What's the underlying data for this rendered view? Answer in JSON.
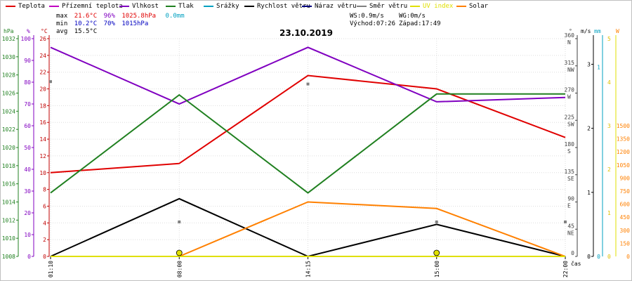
{
  "legend": [
    {
      "label": "Teplota",
      "color": "#e00000"
    },
    {
      "label": "Přízemní teplota",
      "color": "#c000c0"
    },
    {
      "label": "Vlhkost",
      "color": "#8000c0"
    },
    {
      "label": "Tlak",
      "color": "#208020"
    },
    {
      "label": "Srážky",
      "color": "#00a0c0"
    },
    {
      "label": "Rychlost větru",
      "color": "#000000"
    },
    {
      "label": "Náraz větru",
      "color": "#000080"
    },
    {
      "label": "Směr větru",
      "color": "#808080"
    },
    {
      "label": "UV index",
      "color": "#e0e000"
    },
    {
      "label": "Solar",
      "color": "#ff8000"
    }
  ],
  "stats": {
    "max_label": "max",
    "max_temp": "21.6°C",
    "max_hum": "96%",
    "max_press": "1025.8hPa",
    "rain": "0.0mm",
    "min_label": "min",
    "min_temp": "10.2°C",
    "min_hum": "70%",
    "min_press": "1015hPa",
    "avg_label": "avg",
    "avg_temp": "15.5°C"
  },
  "wind_info": {
    "ws": "WS:0.9m/s",
    "wg": "WG:0m/s",
    "sunrise": "Východ:07:26",
    "sunset": "Západ:17:49"
  },
  "colors": {
    "temperature": "#e00000",
    "humidity": "#8000c0",
    "pressure": "#208020",
    "wind_speed": "#000000",
    "wind_dir": "#808080",
    "uv": "#e0e000",
    "solar": "#ff8000",
    "rain": "#00a0c0"
  },
  "chart_data": {
    "type": "line",
    "title": "23.10.2019",
    "x": [
      "01:10",
      "08:00",
      "14:15",
      "15:00",
      "22:00"
    ],
    "xlabel": "čas",
    "series": [
      {
        "name": "Teplota",
        "axis": "temp_c",
        "values": [
          10.0,
          11.1,
          21.6,
          20.0,
          14.2
        ]
      },
      {
        "name": "Vlhkost",
        "axis": "humidity_pct",
        "values": [
          96,
          70,
          96,
          71,
          73
        ]
      },
      {
        "name": "Tlak",
        "axis": "pressure_hpa",
        "values": [
          1015.0,
          1025.8,
          1015.0,
          1025.9,
          1025.9
        ]
      },
      {
        "name": "Rychlost větru",
        "axis": "wind_ms",
        "values": [
          0.0,
          0.9,
          0.0,
          0.5,
          0.0
        ]
      },
      {
        "name": "Solar",
        "axis": "solar",
        "values": [
          0,
          0,
          625,
          550,
          0
        ]
      },
      {
        "name": "Směr větru",
        "axis": "wind_dir_deg",
        "values": [
          289,
          57,
          285,
          57,
          57
        ]
      },
      {
        "name": "UV index",
        "axis": "uv",
        "values": [
          0,
          0.1,
          0,
          0.1,
          0
        ]
      }
    ],
    "axes": {
      "pressure_hpa": {
        "label": "hPa",
        "ticks": [
          "1008",
          "1010",
          "1012",
          "1014",
          "1016",
          "1018",
          "1020",
          "1022",
          "1024",
          "1026",
          "1028",
          "1030",
          "1032"
        ],
        "range": [
          1008,
          1032
        ]
      },
      "humidity_pct": {
        "label": "%",
        "ticks": [
          "0",
          "10",
          "20",
          "30",
          "40",
          "50",
          "60",
          "70",
          "80",
          "90",
          "100"
        ],
        "range": [
          0,
          100
        ]
      },
      "temp_c": {
        "label": "°C",
        "ticks": [
          "0",
          "2",
          "4",
          "6",
          "8",
          "10",
          "12",
          "14",
          "16",
          "18",
          "20",
          "22",
          "24",
          "26"
        ],
        "range": [
          0,
          26
        ]
      },
      "wind_dir_deg": {
        "label": "°",
        "ticks": [
          "0",
          "45",
          "90",
          "135",
          "180",
          "225",
          "270",
          "315",
          "360"
        ],
        "compass": [
          "",
          "NE",
          "E",
          "SE",
          "S",
          "SW",
          "W",
          "NW",
          "N"
        ],
        "range": [
          0,
          360
        ]
      },
      "wind_ms": {
        "label": "m/s",
        "ticks": [
          "0",
          "1",
          "2",
          "3"
        ],
        "range": [
          0,
          3.4
        ]
      },
      "rain_mm": {
        "label": "mm",
        "ticks": [
          "0",
          "1"
        ],
        "range": [
          0,
          1.15
        ]
      },
      "uv": {
        "label": "W",
        "ticks": [
          "0",
          "1",
          "2",
          "3",
          "4",
          "5"
        ],
        "range": [
          0,
          5
        ]
      },
      "solar": {
        "label": "",
        "ticks": [
          "0",
          "150",
          "300",
          "450",
          "600",
          "750",
          "900",
          "1050",
          "1200",
          "1350",
          "1500"
        ],
        "range": [
          0,
          2500
        ]
      }
    },
    "grid": true,
    "legend_position": "top"
  }
}
